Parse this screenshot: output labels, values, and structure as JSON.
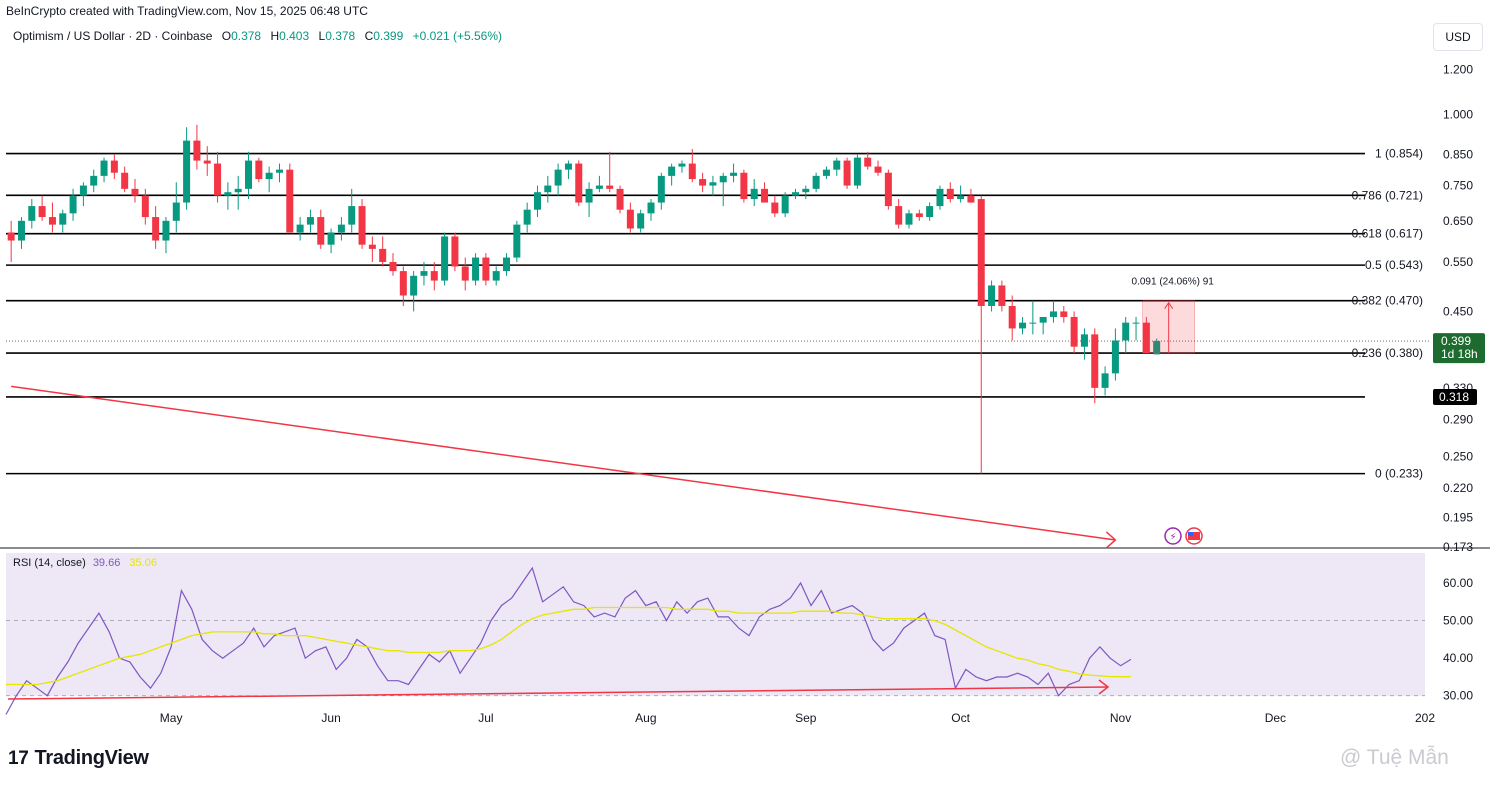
{
  "header": {
    "caption": "BeInCrypto created with TradingView.com, Nov 15, 2025 06:48 UTC",
    "symbol": "Optimism / US Dollar · 2D · Coinbase",
    "o_label": "O",
    "o_value": "0.378",
    "h_label": "H",
    "h_value": "0.403",
    "l_label": "L",
    "l_value": "0.378",
    "c_label": "C",
    "c_value": "0.399",
    "change": "+0.021 (+5.56%)",
    "currency": "USD"
  },
  "price_axis": {
    "ticks": [
      "1.200",
      "1.000",
      "0.850",
      "0.750",
      "0.650",
      "0.550",
      "0.450",
      "0.330",
      "0.290",
      "0.250",
      "0.220",
      "0.195",
      "0.173"
    ],
    "current_price": "0.399",
    "countdown": "1d 18h",
    "line_label": "0.318"
  },
  "fib_levels": [
    {
      "label": "1 (0.854)",
      "price": 0.854
    },
    {
      "label": "0.786 (0.721)",
      "price": 0.721
    },
    {
      "label": "0.618 (0.617)",
      "price": 0.617
    },
    {
      "label": "0.5 (0.543)",
      "price": 0.543
    },
    {
      "label": "0.382 (0.470)",
      "price": 0.47
    },
    {
      "label": "0.236 (0.380)",
      "price": 0.38
    },
    {
      "label": "0 (0.233)",
      "price": 0.233
    }
  ],
  "measure_label": "0.091 (24.06%) 91",
  "rsi": {
    "title": "RSI (14, close)",
    "value": "39.66",
    "ma_value": "35.06",
    "ticks": [
      "60.00",
      "50.00",
      "40.00",
      "30.00"
    ]
  },
  "time_axis": [
    "May",
    "Jun",
    "Jul",
    "Aug",
    "Sep",
    "Oct",
    "Nov",
    "Dec",
    "202"
  ],
  "footer": {
    "logo_mark": "17",
    "logo_text": "TradingView",
    "watermark": "@ Tuệ Mẫn"
  },
  "colors": {
    "up": "#089981",
    "down": "#f23645",
    "rsi_line": "#7e57c2",
    "rsi_ma": "#e6e600",
    "rsi_band": "#ede7f6",
    "trendline": "#f23645",
    "current_price_bg": "#1e6b30"
  },
  "chart_data": [
    {
      "type": "candlestick",
      "title": "Optimism / US Dollar · 2D · Coinbase",
      "y_scale": "log",
      "ylim": [
        0.173,
        1.3
      ],
      "x_range": [
        "2025-04-01",
        "2026-01-01"
      ],
      "candles": [
        [
          "2025-04-02",
          0.62,
          0.65,
          0.55,
          0.6
        ],
        [
          "2025-04-04",
          0.6,
          0.66,
          0.58,
          0.65
        ],
        [
          "2025-04-06",
          0.65,
          0.71,
          0.63,
          0.69
        ],
        [
          "2025-04-08",
          0.69,
          0.72,
          0.65,
          0.66
        ],
        [
          "2025-04-10",
          0.66,
          0.7,
          0.62,
          0.64
        ],
        [
          "2025-04-12",
          0.64,
          0.68,
          0.62,
          0.67
        ],
        [
          "2025-04-14",
          0.67,
          0.74,
          0.65,
          0.72
        ],
        [
          "2025-04-16",
          0.72,
          0.76,
          0.69,
          0.75
        ],
        [
          "2025-04-18",
          0.75,
          0.8,
          0.73,
          0.78
        ],
        [
          "2025-04-20",
          0.78,
          0.84,
          0.76,
          0.83
        ],
        [
          "2025-04-22",
          0.83,
          0.85,
          0.77,
          0.79
        ],
        [
          "2025-04-24",
          0.79,
          0.81,
          0.73,
          0.74
        ],
        [
          "2025-04-26",
          0.74,
          0.77,
          0.7,
          0.72
        ],
        [
          "2025-04-28",
          0.72,
          0.74,
          0.64,
          0.66
        ],
        [
          "2025-04-30",
          0.66,
          0.69,
          0.58,
          0.6
        ],
        [
          "2025-05-02",
          0.6,
          0.66,
          0.57,
          0.65
        ],
        [
          "2025-05-04",
          0.65,
          0.76,
          0.62,
          0.7
        ],
        [
          "2025-05-06",
          0.7,
          0.95,
          0.68,
          0.9
        ],
        [
          "2025-05-08",
          0.9,
          0.96,
          0.8,
          0.83
        ],
        [
          "2025-05-10",
          0.83,
          0.88,
          0.78,
          0.82
        ],
        [
          "2025-05-12",
          0.82,
          0.86,
          0.7,
          0.72
        ],
        [
          "2025-05-14",
          0.72,
          0.76,
          0.68,
          0.73
        ],
        [
          "2025-05-16",
          0.73,
          0.78,
          0.68,
          0.74
        ],
        [
          "2025-05-18",
          0.74,
          0.86,
          0.71,
          0.83
        ],
        [
          "2025-05-20",
          0.83,
          0.84,
          0.76,
          0.77
        ],
        [
          "2025-05-22",
          0.77,
          0.81,
          0.73,
          0.79
        ],
        [
          "2025-05-24",
          0.79,
          0.82,
          0.76,
          0.8
        ],
        [
          "2025-05-26",
          0.8,
          0.82,
          0.62,
          0.62
        ],
        [
          "2025-05-28",
          0.62,
          0.66,
          0.6,
          0.64
        ],
        [
          "2025-05-30",
          0.64,
          0.68,
          0.62,
          0.66
        ],
        [
          "2025-06-01",
          0.66,
          0.68,
          0.58,
          0.59
        ],
        [
          "2025-06-03",
          0.59,
          0.63,
          0.57,
          0.62
        ],
        [
          "2025-06-05",
          0.62,
          0.66,
          0.6,
          0.64
        ],
        [
          "2025-06-07",
          0.64,
          0.74,
          0.62,
          0.69
        ],
        [
          "2025-06-09",
          0.69,
          0.71,
          0.58,
          0.59
        ],
        [
          "2025-06-11",
          0.59,
          0.61,
          0.55,
          0.58
        ],
        [
          "2025-06-13",
          0.58,
          0.61,
          0.54,
          0.55
        ],
        [
          "2025-06-15",
          0.55,
          0.57,
          0.52,
          0.53
        ],
        [
          "2025-06-17",
          0.53,
          0.54,
          0.46,
          0.48
        ],
        [
          "2025-06-19",
          0.48,
          0.53,
          0.45,
          0.52
        ],
        [
          "2025-06-21",
          0.52,
          0.55,
          0.5,
          0.53
        ],
        [
          "2025-06-23",
          0.53,
          0.55,
          0.49,
          0.51
        ],
        [
          "2025-06-25",
          0.51,
          0.62,
          0.5,
          0.61
        ],
        [
          "2025-06-27",
          0.61,
          0.62,
          0.53,
          0.54
        ],
        [
          "2025-06-29",
          0.54,
          0.56,
          0.49,
          0.51
        ],
        [
          "2025-07-01",
          0.51,
          0.57,
          0.5,
          0.56
        ],
        [
          "2025-07-03",
          0.56,
          0.57,
          0.5,
          0.51
        ],
        [
          "2025-07-05",
          0.51,
          0.54,
          0.5,
          0.53
        ],
        [
          "2025-07-07",
          0.53,
          0.57,
          0.52,
          0.56
        ],
        [
          "2025-07-09",
          0.56,
          0.65,
          0.55,
          0.64
        ],
        [
          "2025-07-11",
          0.64,
          0.7,
          0.62,
          0.68
        ],
        [
          "2025-07-13",
          0.68,
          0.75,
          0.66,
          0.73
        ],
        [
          "2025-07-15",
          0.73,
          0.78,
          0.7,
          0.75
        ],
        [
          "2025-07-17",
          0.75,
          0.82,
          0.72,
          0.8
        ],
        [
          "2025-07-19",
          0.8,
          0.83,
          0.77,
          0.82
        ],
        [
          "2025-07-21",
          0.82,
          0.83,
          0.69,
          0.7
        ],
        [
          "2025-07-23",
          0.7,
          0.76,
          0.66,
          0.74
        ],
        [
          "2025-07-25",
          0.74,
          0.78,
          0.73,
          0.75
        ],
        [
          "2025-07-27",
          0.75,
          0.86,
          0.73,
          0.74
        ],
        [
          "2025-07-29",
          0.74,
          0.75,
          0.67,
          0.68
        ],
        [
          "2025-07-31",
          0.68,
          0.7,
          0.62,
          0.63
        ],
        [
          "2025-08-02",
          0.63,
          0.68,
          0.62,
          0.67
        ],
        [
          "2025-08-04",
          0.67,
          0.71,
          0.65,
          0.7
        ],
        [
          "2025-08-06",
          0.7,
          0.79,
          0.68,
          0.78
        ],
        [
          "2025-08-08",
          0.78,
          0.82,
          0.75,
          0.81
        ],
        [
          "2025-08-10",
          0.81,
          0.83,
          0.79,
          0.82
        ],
        [
          "2025-08-12",
          0.82,
          0.87,
          0.76,
          0.77
        ],
        [
          "2025-08-14",
          0.77,
          0.79,
          0.73,
          0.75
        ],
        [
          "2025-08-16",
          0.75,
          0.78,
          0.72,
          0.76
        ],
        [
          "2025-08-18",
          0.76,
          0.79,
          0.69,
          0.78
        ],
        [
          "2025-08-20",
          0.78,
          0.82,
          0.76,
          0.79
        ],
        [
          "2025-08-22",
          0.79,
          0.8,
          0.7,
          0.71
        ],
        [
          "2025-08-24",
          0.71,
          0.77,
          0.69,
          0.74
        ],
        [
          "2025-08-26",
          0.74,
          0.76,
          0.7,
          0.7
        ],
        [
          "2025-08-28",
          0.7,
          0.72,
          0.66,
          0.67
        ],
        [
          "2025-08-30",
          0.67,
          0.73,
          0.66,
          0.72
        ],
        [
          "2025-09-01",
          0.72,
          0.74,
          0.71,
          0.73
        ],
        [
          "2025-09-03",
          0.73,
          0.75,
          0.71,
          0.74
        ],
        [
          "2025-09-05",
          0.74,
          0.79,
          0.73,
          0.78
        ],
        [
          "2025-09-07",
          0.78,
          0.81,
          0.77,
          0.8
        ],
        [
          "2025-09-09",
          0.8,
          0.84,
          0.78,
          0.83
        ],
        [
          "2025-09-11",
          0.83,
          0.84,
          0.74,
          0.75
        ],
        [
          "2025-09-13",
          0.75,
          0.85,
          0.74,
          0.84
        ],
        [
          "2025-09-15",
          0.84,
          0.86,
          0.8,
          0.81
        ],
        [
          "2025-09-17",
          0.81,
          0.83,
          0.78,
          0.79
        ],
        [
          "2025-09-19",
          0.79,
          0.8,
          0.68,
          0.69
        ],
        [
          "2025-09-21",
          0.69,
          0.71,
          0.63,
          0.64
        ],
        [
          "2025-09-23",
          0.64,
          0.68,
          0.63,
          0.67
        ],
        [
          "2025-09-25",
          0.67,
          0.68,
          0.65,
          0.66
        ],
        [
          "2025-09-27",
          0.66,
          0.7,
          0.65,
          0.69
        ],
        [
          "2025-09-29",
          0.69,
          0.75,
          0.68,
          0.74
        ],
        [
          "2025-10-01",
          0.74,
          0.76,
          0.7,
          0.71
        ],
        [
          "2025-10-03",
          0.71,
          0.75,
          0.7,
          0.72
        ],
        [
          "2025-10-05",
          0.72,
          0.74,
          0.7,
          0.7
        ],
        [
          "2025-10-07",
          0.71,
          0.72,
          0.233,
          0.46
        ],
        [
          "2025-10-09",
          0.46,
          0.51,
          0.45,
          0.5
        ],
        [
          "2025-10-11",
          0.5,
          0.51,
          0.45,
          0.46
        ],
        [
          "2025-10-13",
          0.46,
          0.48,
          0.4,
          0.42
        ],
        [
          "2025-10-15",
          0.42,
          0.44,
          0.41,
          0.43
        ],
        [
          "2025-10-17",
          0.43,
          0.47,
          0.41,
          0.43
        ],
        [
          "2025-10-19",
          0.43,
          0.44,
          0.41,
          0.44
        ],
        [
          "2025-10-21",
          0.44,
          0.47,
          0.43,
          0.45
        ],
        [
          "2025-10-23",
          0.45,
          0.46,
          0.43,
          0.44
        ],
        [
          "2025-10-25",
          0.44,
          0.45,
          0.38,
          0.39
        ],
        [
          "2025-10-27",
          0.39,
          0.42,
          0.37,
          0.41
        ],
        [
          "2025-10-29",
          0.41,
          0.42,
          0.31,
          0.33
        ],
        [
          "2025-10-31",
          0.33,
          0.36,
          0.32,
          0.35
        ],
        [
          "2025-11-02",
          0.35,
          0.42,
          0.34,
          0.4
        ],
        [
          "2025-11-04",
          0.4,
          0.44,
          0.38,
          0.43
        ],
        [
          "2025-11-06",
          0.43,
          0.44,
          0.4,
          0.43
        ],
        [
          "2025-11-08",
          0.43,
          0.44,
          0.38,
          0.38
        ],
        [
          "2025-11-10",
          0.378,
          0.403,
          0.378,
          0.399
        ]
      ],
      "horizontal_lines": [
        0.854,
        0.721,
        0.617,
        0.543,
        0.47,
        0.38,
        0.318,
        0.233
      ],
      "trendline": {
        "from": [
          "2025-04-02",
          0.332
        ],
        "to": [
          "2025-11-02",
          0.178
        ]
      }
    },
    {
      "type": "line",
      "title": "RSI (14, close)",
      "ylim": [
        27,
        68
      ],
      "bands": [
        30,
        50,
        70
      ],
      "series": [
        {
          "name": "RSI (14, close)",
          "x_start": "2025-04-01",
          "x_step_days": 2,
          "values": [
            25,
            30,
            34,
            32,
            30,
            35,
            39,
            44,
            48,
            52,
            47,
            40,
            39,
            35,
            32,
            36,
            43,
            58,
            53,
            45,
            42,
            40,
            42,
            44,
            48,
            43,
            46,
            47,
            48,
            40,
            42,
            43,
            37,
            40,
            45,
            43,
            38,
            34,
            34,
            33,
            37,
            41,
            39,
            42,
            36,
            40,
            44,
            50,
            54,
            56,
            60,
            64,
            55,
            57,
            59,
            55,
            54,
            51,
            52,
            51,
            56,
            58,
            54,
            55,
            50,
            55,
            52,
            55,
            56,
            51,
            51,
            48,
            46,
            51,
            53,
            54,
            56,
            60,
            54,
            58,
            52,
            53,
            54,
            52,
            45,
            42,
            44,
            48,
            50,
            52,
            46,
            45,
            32,
            37,
            35,
            34,
            35,
            35,
            36,
            35,
            33,
            36,
            30,
            33,
            34,
            40,
            43,
            40,
            38,
            39.66
          ]
        },
        {
          "name": "RSI-based MA",
          "x_start": "2025-04-01",
          "x_step_days": 2,
          "values": [
            33,
            33,
            33,
            33,
            33.5,
            34,
            35,
            36,
            37,
            38,
            39,
            40,
            40.5,
            41,
            42,
            43,
            44,
            45,
            46,
            46.5,
            47,
            47,
            47,
            47,
            47,
            46.5,
            46.5,
            46,
            46,
            46,
            45.5,
            45,
            44.5,
            44,
            43.5,
            43,
            42.5,
            42,
            42,
            41.5,
            41.5,
            41.5,
            41.5,
            42,
            42,
            42,
            42.5,
            43.5,
            45,
            47,
            49,
            50.5,
            51.5,
            52,
            52.5,
            53,
            53,
            53.5,
            53.5,
            53.5,
            53.5,
            53.5,
            53.5,
            53.5,
            53.5,
            53,
            53,
            53,
            53,
            52.5,
            52.5,
            52,
            52,
            52,
            52,
            52,
            52,
            52.5,
            52.5,
            52.5,
            52.5,
            52,
            52,
            51.5,
            51,
            50.5,
            50.5,
            50.5,
            50.5,
            50.5,
            50,
            49,
            47.5,
            46,
            44.5,
            43,
            42,
            41,
            40,
            39.5,
            38.5,
            38,
            37,
            36.5,
            35.8,
            35.5,
            35.3,
            35.1,
            35.06,
            35.06
          ]
        }
      ]
    }
  ]
}
